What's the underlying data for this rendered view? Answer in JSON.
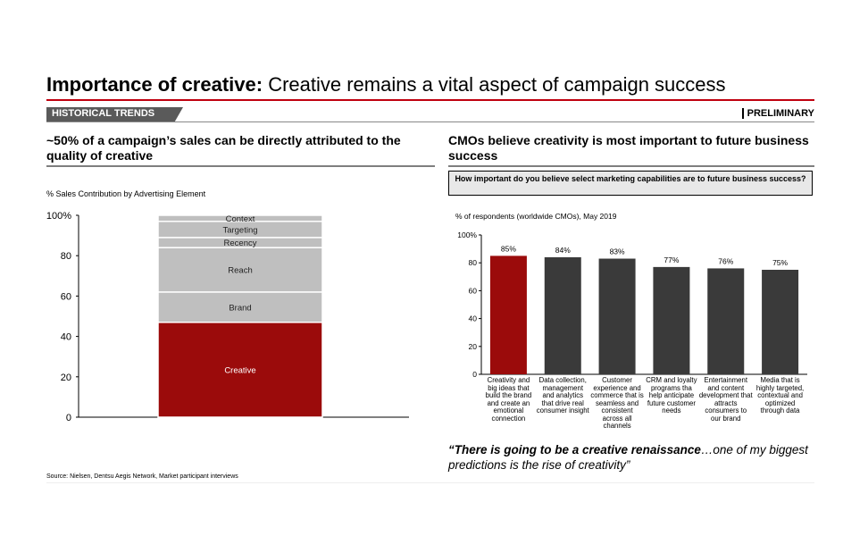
{
  "title": {
    "bold": "Importance of creative:",
    "rest": " Creative remains a vital aspect of campaign success"
  },
  "tag": "HISTORICAL TRENDS",
  "status": "PRELIMINARY",
  "left": {
    "headline": "~50% of a campaign’s sales can be directly attributed to the quality of creative",
    "chart_label": "% Sales Contribution by Advertising Element"
  },
  "right": {
    "headline": "CMOs believe creativity is most important to future business success",
    "question": "How important do you believe select marketing capabilities are to future business success?",
    "chart_label": "% of respondents (worldwide CMOs), May 2019"
  },
  "quote": {
    "bold": "“There is going to be a creative renaissance",
    "rest": "…one of my biggest predictions is the rise of creativity”"
  },
  "source": "Source: Nielsen, Dentsu Aegis Network, Market participant interviews",
  "colors": {
    "accent": "#9b0b0b",
    "dark_bar": "#3a3a3a",
    "light_segment": "#bfbfbf"
  },
  "chart_data": [
    {
      "type": "bar",
      "stacked": true,
      "ylim": [
        0,
        100
      ],
      "yticks": [
        "0",
        "20",
        "40",
        "60",
        "80",
        "100%"
      ],
      "series": [
        {
          "name": "Creative",
          "value": 47
        },
        {
          "name": "Brand",
          "value": 15
        },
        {
          "name": "Reach",
          "value": 22
        },
        {
          "name": "Recency",
          "value": 5
        },
        {
          "name": "Targeting",
          "value": 8
        },
        {
          "name": "Context",
          "value": 3
        }
      ]
    },
    {
      "type": "bar",
      "ylim": [
        0,
        100
      ],
      "yticks": [
        "0",
        "20",
        "40",
        "60",
        "80",
        "100%"
      ],
      "categories": [
        "Creativity and big ideas that build the brand and create an emotional connection",
        "Data collection, management and analytics that drive real consumer insight",
        "Customer experience and commerce that is seamless and consistent across all channels",
        "CRM and loyalty programs tha help anticipate future customer needs",
        "Entertainment and content development that attracts consumers to our brand",
        "Media that is highly targeted, contextual and optimized through data"
      ],
      "values": [
        85,
        84,
        83,
        77,
        76,
        75
      ],
      "value_labels": [
        "85%",
        "84%",
        "83%",
        "77%",
        "76%",
        "75%"
      ]
    }
  ]
}
